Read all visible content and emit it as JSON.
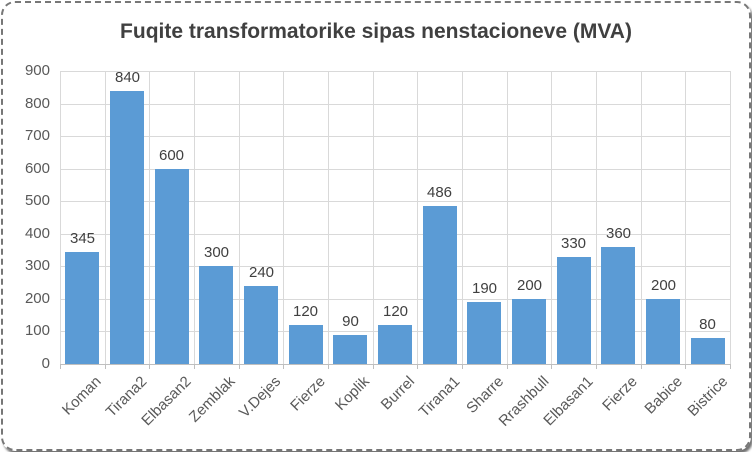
{
  "chart_data": {
    "type": "bar",
    "title": "Fuqite transformatorike sipas nenstacioneve (MVA)",
    "categories": [
      "Koman",
      "Tirana2",
      "Elbasan2",
      "Zemblak",
      "V.Dejes",
      "Fierze",
      "Koplik",
      "Burrel",
      "Tirana1",
      "Sharre",
      "Rrashbull",
      "Elbasan1",
      "Fierze",
      "Babice",
      "Bistrice"
    ],
    "values": [
      345,
      840,
      600,
      300,
      240,
      120,
      90,
      120,
      486,
      190,
      200,
      330,
      360,
      200,
      80
    ],
    "data_labels": [
      345,
      840,
      600,
      300,
      240,
      120,
      90,
      120,
      486,
      190,
      200,
      330,
      360,
      200,
      80
    ],
    "xlabel": "",
    "ylabel": "",
    "ylim": [
      0,
      900
    ],
    "ytick_step": 100,
    "yticks": [
      0,
      100,
      200,
      300,
      400,
      500,
      600,
      700,
      800,
      900
    ],
    "grid": "horizontal-and-vertical",
    "legend": "none",
    "x_tick_rotation_deg": 45,
    "colors": {
      "bar": "#5B9BD5",
      "gridline": "#D9D9D9",
      "axis_line": "#BFBFBF",
      "title_text": "#404040",
      "tick_label_text": "#595959",
      "data_label_text": "#404040",
      "border_dash": "#777777",
      "background": "#FFFFFF"
    }
  }
}
